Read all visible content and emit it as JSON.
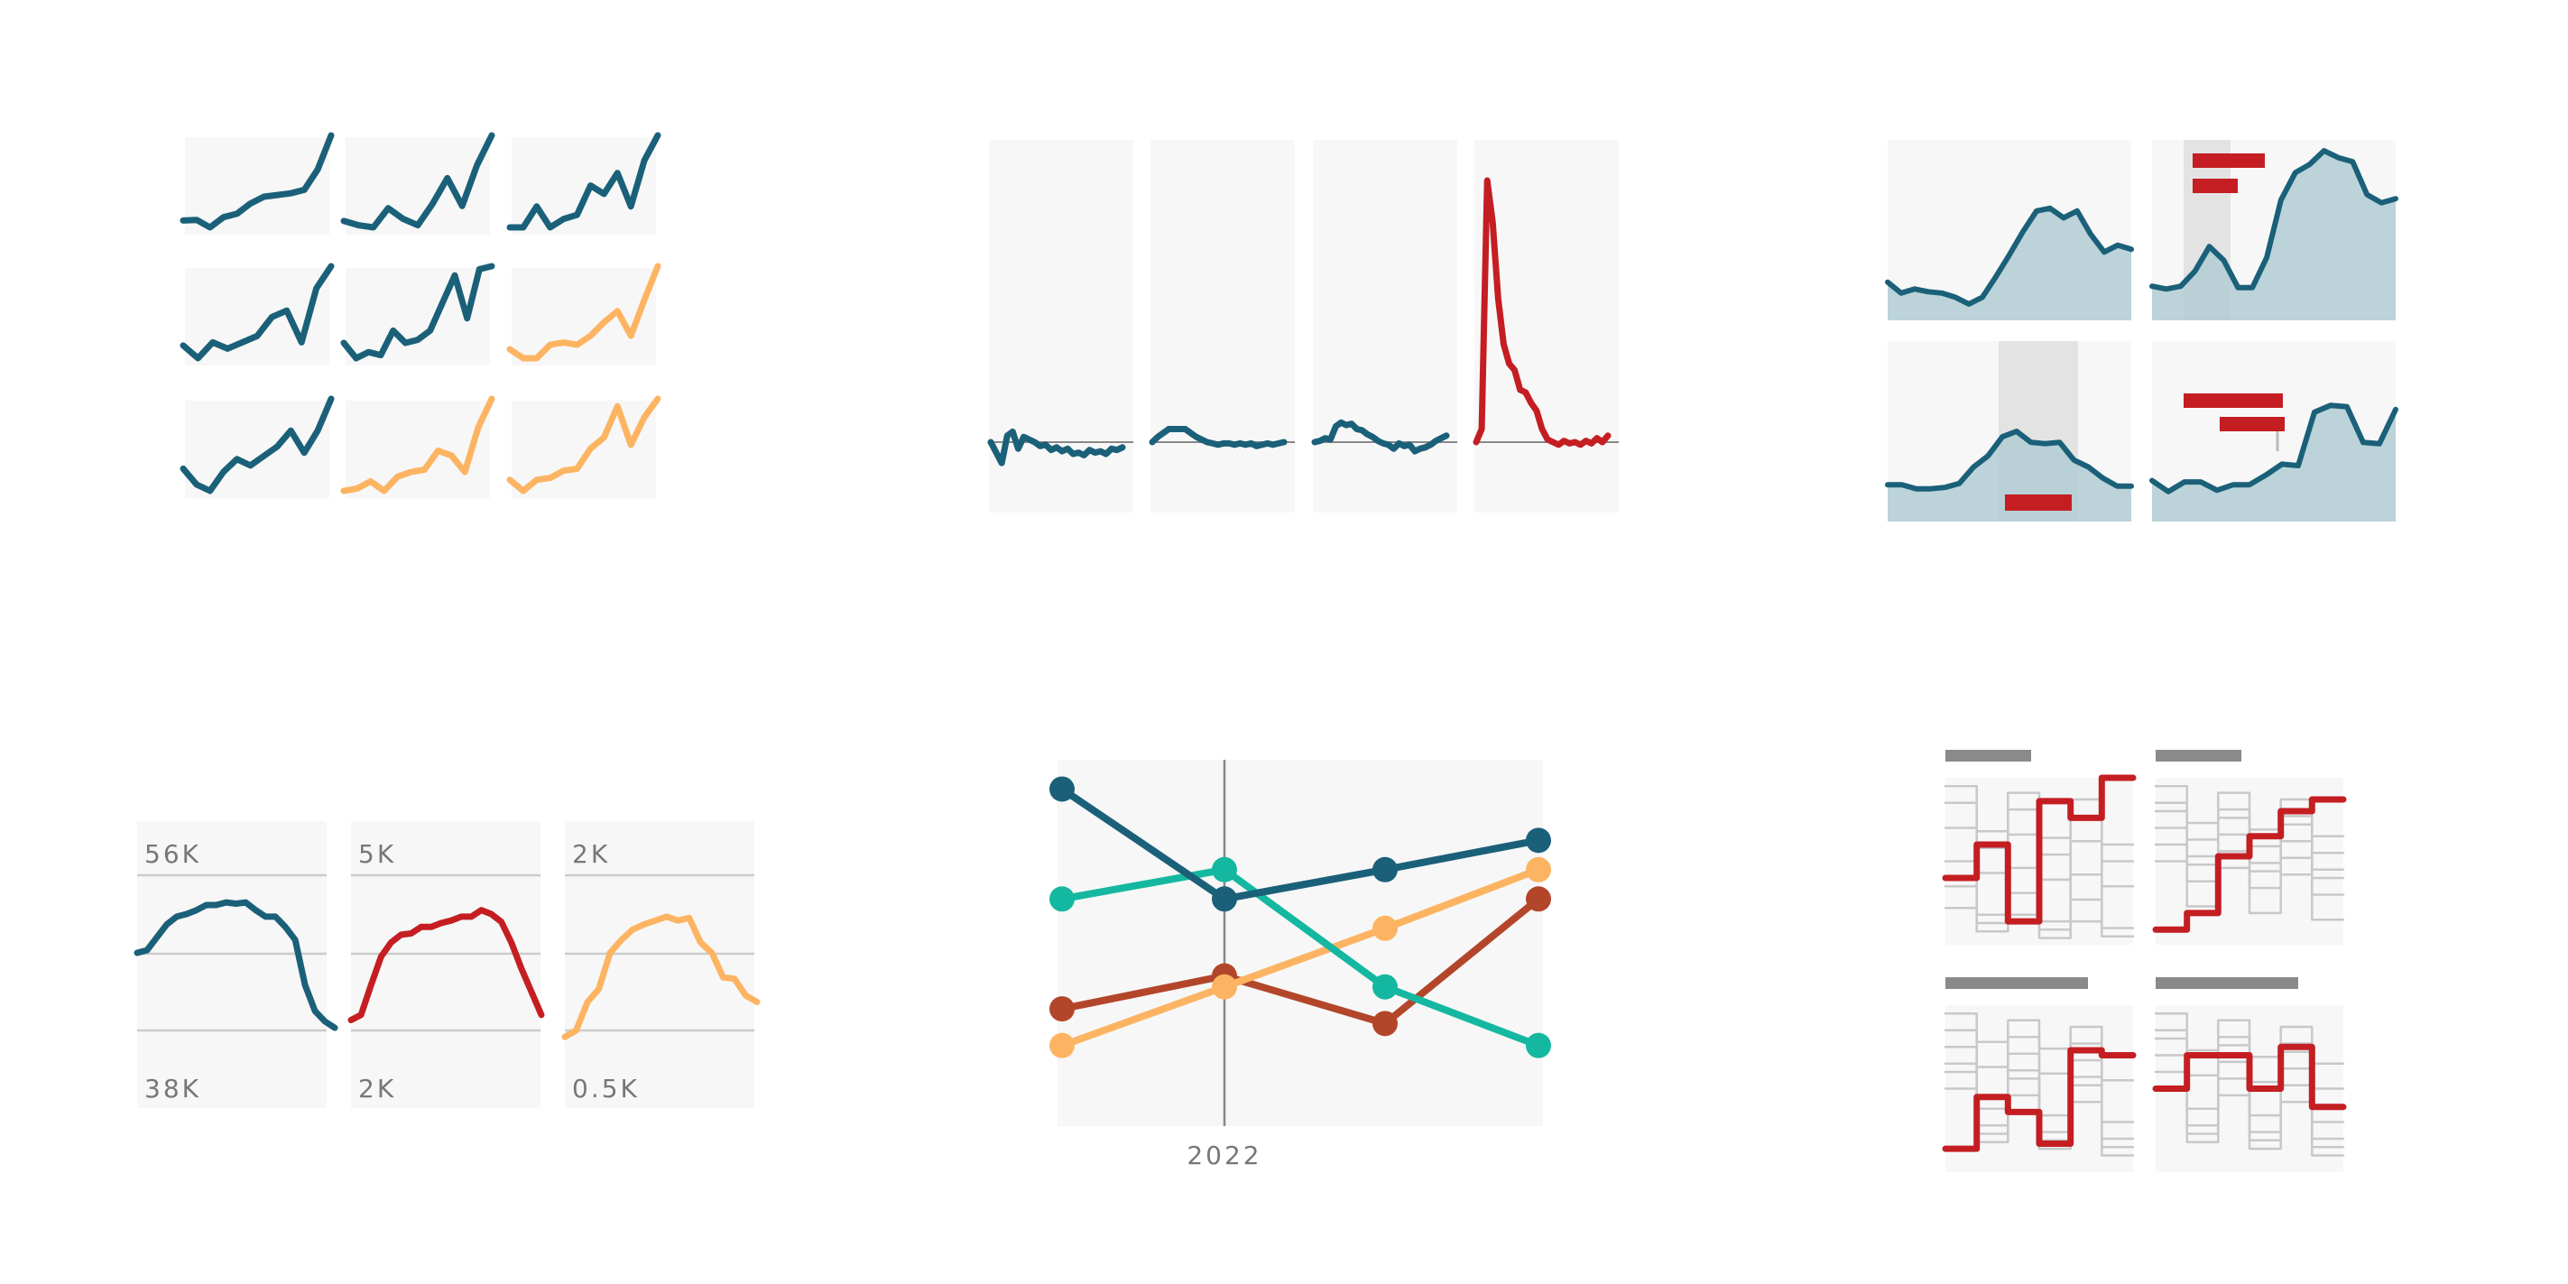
{
  "colors": {
    "teal": "#1b6079",
    "orange": "#fdb462",
    "red": "#c41e23",
    "green": "#14b8a0",
    "rust": "#b3462a",
    "panel": "#f7f7f7",
    "shade": "#e3e3e3",
    "area_fill": "#b0cdd4",
    "bar_gray": "#8a8a8a",
    "light_gray": "#c8c8c8",
    "grid": "#cccccc"
  },
  "chart_data": [
    {
      "type": "line",
      "layout": "small-multiples 3x3",
      "series": [
        {
          "color": "teal",
          "values": [
            3,
            3.2,
            1,
            4,
            5,
            8,
            10,
            10.5,
            11,
            12,
            18,
            28
          ]
        },
        {
          "color": "teal",
          "values": [
            2,
            0,
            -1,
            8,
            3,
            0,
            10,
            22,
            9,
            28,
            42
          ]
        },
        {
          "color": "teal",
          "values": [
            4,
            4,
            9,
            4,
            6,
            7,
            14,
            12,
            17,
            9,
            20,
            26
          ]
        },
        {
          "color": "teal",
          "values": [
            4,
            0,
            5,
            3,
            5,
            7,
            13,
            15,
            5,
            22,
            29
          ]
        },
        {
          "color": "teal",
          "values": [
            5,
            0,
            2,
            1,
            9,
            5,
            6,
            9,
            18,
            27,
            13,
            29,
            30
          ]
        },
        {
          "color": "orange",
          "values": [
            8,
            4,
            4,
            10,
            11,
            10,
            14,
            20,
            25,
            14,
            30,
            45
          ]
        },
        {
          "color": "teal",
          "values": [
            6,
            1,
            -1,
            5,
            9,
            7,
            10,
            13,
            18,
            11,
            18,
            28
          ]
        },
        {
          "color": "orange",
          "values": [
            2,
            3,
            6,
            2,
            8,
            10,
            11,
            19,
            17,
            10,
            29,
            41
          ]
        },
        {
          "color": "orange",
          "values": [
            5,
            -1,
            5,
            6,
            10,
            11,
            22,
            28,
            45,
            24,
            39,
            49
          ]
        }
      ]
    },
    {
      "type": "line",
      "layout": "small-multiples 1x4 with baseline",
      "series": [
        {
          "color": "teal",
          "values": [
            0,
            -8,
            -16,
            5,
            8,
            -5,
            4,
            2,
            0,
            -3,
            -2,
            -6,
            -4,
            -7,
            -5,
            -9,
            -8,
            -10,
            -6,
            -8,
            -7,
            -9,
            -5,
            -6,
            -4
          ]
        },
        {
          "color": "teal",
          "values": [
            0,
            4,
            7,
            10,
            10,
            10,
            10,
            7,
            4,
            2,
            0,
            -1,
            -2,
            -1,
            -1,
            -2,
            -1,
            -2,
            -1,
            -3,
            -2,
            -1,
            -2,
            -1,
            0
          ]
        },
        {
          "color": "teal",
          "values": [
            0,
            1,
            3,
            2,
            12,
            15,
            13,
            14,
            10,
            9,
            6,
            4,
            1,
            -1,
            -2,
            -5,
            -1,
            -3,
            -2,
            -7,
            -5,
            -4,
            -2,
            1,
            3,
            5
          ]
        },
        {
          "color": "red",
          "values": [
            0,
            10,
            200,
            168,
            110,
            75,
            60,
            55,
            40,
            38,
            30,
            24,
            10,
            2,
            0,
            -2,
            1,
            -1,
            0,
            -2,
            1,
            -1,
            3,
            0,
            5
          ]
        }
      ]
    },
    {
      "type": "area",
      "layout": "small-multiples 2x2 with highlighted ranges",
      "series": [
        {
          "values": [
            8,
            0,
            3,
            1,
            0,
            -3,
            -8,
            -3,
            12,
            28,
            45,
            60,
            62,
            55,
            60,
            43,
            30,
            35,
            32
          ]
        },
        {
          "values": [
            5,
            3,
            5,
            16,
            34,
            24,
            4,
            4,
            26,
            68,
            88,
            94,
            104,
            99,
            96,
            72,
            66,
            69
          ]
        },
        {
          "values": [
            7,
            7,
            4,
            4,
            5,
            8,
            20,
            28,
            42,
            46,
            38,
            37,
            38,
            25,
            20,
            12,
            6,
            6
          ]
        },
        {
          "values": [
            10,
            2,
            9,
            9,
            3,
            7,
            7,
            14,
            22,
            21,
            60,
            65,
            64,
            38,
            37,
            62
          ]
        }
      ]
    },
    {
      "type": "line",
      "layout": "small-multiples 1x3 with own y-axes",
      "panels": [
        {
          "color": "teal",
          "y_top": "56K",
          "y_bottom": "38K",
          "values": [
            0.8,
            0.78,
            0.68,
            0.58,
            0.52,
            0.5,
            0.47,
            0.43,
            0.43,
            0.41,
            0.42,
            0.41,
            0.47,
            0.52,
            0.52,
            0.6,
            0.7,
            1.05,
            1.25,
            1.33,
            1.38
          ]
        },
        {
          "color": "red",
          "y_top": "5K",
          "y_bottom": "2K",
          "values": [
            1.32,
            1.28,
            1.05,
            0.83,
            0.72,
            0.66,
            0.65,
            0.6,
            0.6,
            0.57,
            0.55,
            0.52,
            0.52,
            0.47,
            0.5,
            0.56,
            0.72,
            0.92,
            1.1,
            1.28
          ]
        },
        {
          "color": "orange",
          "y_top": "2K",
          "y_bottom": "0.5K",
          "values": [
            1.45,
            1.4,
            1.18,
            1.08,
            0.8,
            0.7,
            0.62,
            0.58,
            0.55,
            0.52,
            0.55,
            0.53,
            0.72,
            0.8,
            0.99,
            1.0,
            1.13,
            1.18
          ]
        }
      ]
    },
    {
      "type": "line",
      "layout": "slope chart with markers",
      "xlabel": "2022",
      "series": [
        {
          "color": "teal",
          "values": [
            0.08,
            0.38,
            0.3,
            0.22
          ]
        },
        {
          "color": "green",
          "values": [
            0.38,
            0.3,
            0.62,
            0.78
          ]
        },
        {
          "color": "rust",
          "values": [
            0.68,
            0.59,
            0.72,
            0.38
          ]
        },
        {
          "color": "orange",
          "values": [
            0.78,
            0.62,
            0.46,
            0.3
          ]
        }
      ]
    },
    {
      "type": "line",
      "layout": "small-multiples 2x2 step lines",
      "panels": [
        {
          "steps": [
            0.6,
            0.4,
            0.86,
            0.14,
            0.24,
            0.0
          ]
        },
        {
          "steps": [
            0.91,
            0.81,
            0.47,
            0.35,
            0.2,
            0.13
          ]
        },
        {
          "steps": [
            0.86,
            0.55,
            0.64,
            0.83,
            0.27,
            0.3
          ]
        },
        {
          "steps": [
            0.5,
            0.3,
            0.3,
            0.5,
            0.25,
            0.61
          ]
        }
      ]
    }
  ]
}
